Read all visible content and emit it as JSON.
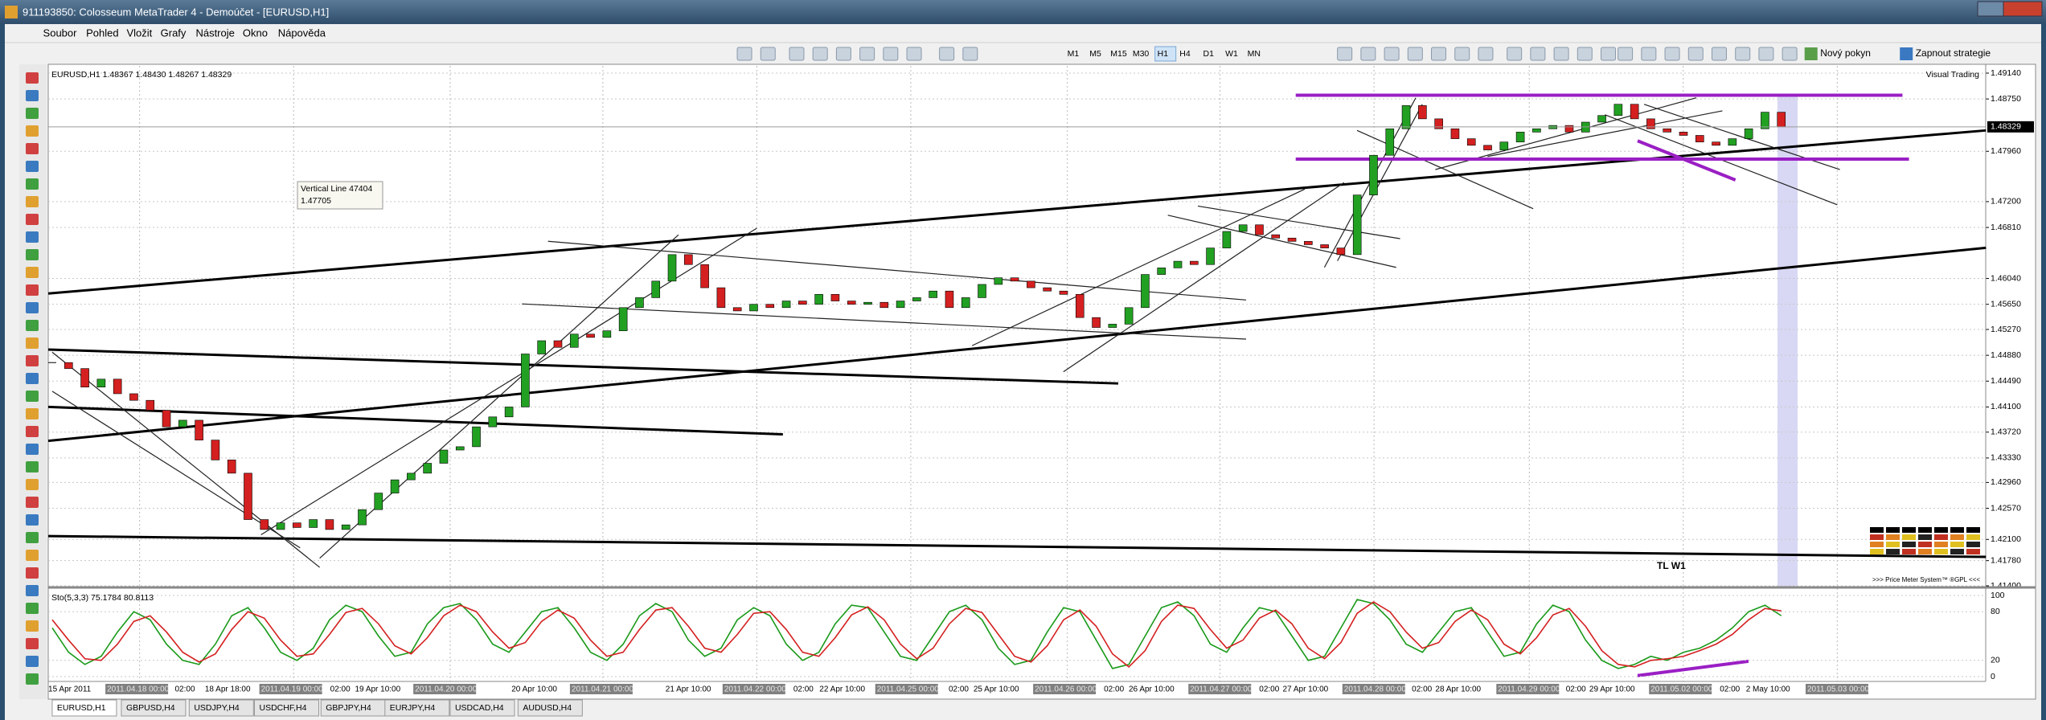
{
  "window": {
    "title": "911193850: Colosseum MetaTrader 4 - Demoúčet - [EURUSD,H1]",
    "menu": [
      "Soubor",
      "Pohled",
      "Vložit",
      "Grafy",
      "Nástroje",
      "Okno",
      "Nápověda"
    ],
    "timeframes": [
      "M1",
      "M5",
      "M15",
      "M30",
      "H1",
      "H4",
      "D1",
      "W1",
      "MN"
    ],
    "new_order": "Nový pokyn",
    "strategies": "Zapnout strategie"
  },
  "chart_data": [
    {
      "type": "candlestick",
      "title": "EURUSD,H1  1.48367 1.48430 1.48267 1.48329",
      "values": [
        1.4477,
        1.4468,
        1.444,
        1.4452,
        1.443,
        1.442,
        1.4405,
        1.438,
        1.439,
        1.436,
        1.433,
        1.431,
        1.424,
        1.4225,
        1.4235,
        1.4228,
        1.424,
        1.4225,
        1.4232,
        1.4255,
        1.428,
        1.43,
        1.431,
        1.4325,
        1.4345,
        1.435,
        1.438,
        1.4395,
        1.441,
        1.449,
        1.451,
        1.45,
        1.452,
        1.4515,
        1.4525,
        1.456,
        1.4575,
        1.46,
        1.464,
        1.4625,
        1.459,
        1.456,
        1.4555,
        1.4565,
        1.456,
        1.457,
        1.4565,
        1.458,
        1.457,
        1.4565,
        1.4568,
        1.456,
        1.457,
        1.4575,
        1.4585,
        1.456,
        1.4575,
        1.4595,
        1.4605,
        1.46,
        1.459,
        1.4585,
        1.458,
        1.4545,
        1.453,
        1.4535,
        1.456,
        1.461,
        1.462,
        1.463,
        1.4625,
        1.465,
        1.4675,
        1.4685,
        1.467,
        1.4665,
        1.466,
        1.4655,
        1.465,
        1.464,
        1.473,
        1.479,
        1.483,
        1.4865,
        1.4845,
        1.483,
        1.4815,
        1.4805,
        1.4798,
        1.481,
        1.4825,
        1.483,
        1.4835,
        1.4825,
        1.484,
        1.485,
        1.4867,
        1.4845,
        1.483,
        1.4825,
        1.482,
        1.481,
        1.4805,
        1.4815,
        1.483,
        1.4855,
        1.4833
      ],
      "up_color": "#22a022",
      "down_color": "#d42020",
      "ylim": [
        1.414,
        1.4914
      ],
      "yticks": [
        {
          "value": 1.4914,
          "label": "1.49140"
        },
        {
          "value": 1.4875,
          "label": "1.48750"
        },
        {
          "value": 1.4796,
          "label": "1.47960"
        },
        {
          "value": 1.472,
          "label": "1.47200"
        },
        {
          "value": 1.4681,
          "label": "1.46810"
        },
        {
          "value": 1.4604,
          "label": "1.46040"
        },
        {
          "value": 1.4565,
          "label": "1.45650"
        },
        {
          "value": 1.4527,
          "label": "1.45270"
        },
        {
          "value": 1.4488,
          "label": "1.44880"
        },
        {
          "value": 1.4449,
          "label": "1.44490"
        },
        {
          "value": 1.441,
          "label": "1.44100"
        },
        {
          "value": 1.4372,
          "label": "1.43720"
        },
        {
          "value": 1.4333,
          "label": "1.43330"
        },
        {
          "value": 1.4296,
          "label": "1.42960"
        },
        {
          "value": 1.4257,
          "label": "1.42570"
        },
        {
          "value": 1.421,
          "label": "1.42100"
        },
        {
          "value": 1.4178,
          "label": "1.41780"
        },
        {
          "value": 1.414,
          "label": "1.41400"
        }
      ],
      "bid": {
        "value": 1.48329,
        "label": "1.48329"
      },
      "grid": true,
      "annotations": {
        "tooltip_name": "Vertical Line 47404",
        "tooltip_value": "1.47705",
        "visual_trading": "Visual Trading",
        "trendline": "TL W1",
        "price_meter": ">>> Price Meter System™ ®GPL <<<"
      },
      "time_axis": [
        {
          "label": "15 Apr 2011",
          "highlight": false
        },
        {
          "label": "2011.04.18 00:00",
          "highlight": true
        },
        {
          "label": "02:00",
          "highlight": false
        },
        {
          "label": "18 Apr 18:00",
          "highlight": false
        },
        {
          "label": "2011.04.19 00:00",
          "highlight": true
        },
        {
          "label": "02:00",
          "highlight": false
        },
        {
          "label": "19 Apr 10:00",
          "highlight": false
        },
        {
          "label": "2011.04.20 00:00",
          "highlight": true
        },
        {
          "label": "20 Apr 10:00",
          "highlight": false
        },
        {
          "label": "2011.04.21 00:00",
          "highlight": true
        },
        {
          "label": "21 Apr 10:00",
          "highlight": false
        },
        {
          "label": "2011.04.22 00:00",
          "highlight": true
        },
        {
          "label": "02:00",
          "highlight": false
        },
        {
          "label": "22 Apr 10:00",
          "highlight": false
        },
        {
          "label": "2011.04.25 00:00",
          "highlight": true
        },
        {
          "label": "02:00",
          "highlight": false
        },
        {
          "label": "25 Apr 10:00",
          "highlight": false
        },
        {
          "label": "2011.04.26 00:00",
          "highlight": true
        },
        {
          "label": "02:00",
          "highlight": false
        },
        {
          "label": "26 Apr 10:00",
          "highlight": false
        },
        {
          "label": "2011.04.27 00:00",
          "highlight": true
        },
        {
          "label": "02:00",
          "highlight": false
        },
        {
          "label": "27 Apr 10:00",
          "highlight": false
        },
        {
          "label": "2011.04.28 00:00",
          "highlight": true
        },
        {
          "label": "02:00",
          "highlight": false
        },
        {
          "label": "28 Apr 10:00",
          "highlight": false
        },
        {
          "label": "2011.04.29 00:00",
          "highlight": true
        },
        {
          "label": "02:00",
          "highlight": false
        },
        {
          "label": "29 Apr 10:00",
          "highlight": false
        },
        {
          "label": "2011.05.02 00:00",
          "highlight": true
        },
        {
          "label": "02:00",
          "highlight": false
        },
        {
          "label": "2 May 10:00",
          "highlight": false
        },
        {
          "label": "2011.05.03 00:00",
          "highlight": true
        }
      ]
    },
    {
      "type": "line",
      "title": "Sto(5,3,3) 75.1784 80.8113",
      "series": [
        {
          "color": "#1a9a1a",
          "values": [
            60,
            30,
            15,
            25,
            55,
            80,
            70,
            40,
            20,
            15,
            40,
            75,
            85,
            60,
            30,
            20,
            35,
            70,
            88,
            80,
            50,
            25,
            30,
            65,
            85,
            90,
            70,
            40,
            30,
            55,
            80,
            85,
            60,
            30,
            20,
            40,
            75,
            90,
            80,
            45,
            25,
            35,
            70,
            85,
            75,
            40,
            20,
            30,
            65,
            88,
            85,
            55,
            25,
            20,
            50,
            80,
            88,
            70,
            35,
            15,
            20,
            55,
            85,
            80,
            45,
            10,
            15,
            50,
            85,
            92,
            75,
            40,
            30,
            60,
            85,
            80,
            50,
            20,
            25,
            60,
            95,
            90,
            70,
            40,
            30,
            55,
            80,
            85,
            55,
            25,
            30,
            65,
            88,
            80,
            45,
            20,
            10,
            15,
            25,
            20,
            30,
            35,
            45,
            60,
            80,
            88,
            75
          ]
        },
        {
          "color": "#d42020",
          "values": [
            70,
            45,
            22,
            20,
            40,
            68,
            75,
            55,
            30,
            18,
            28,
            58,
            80,
            72,
            45,
            25,
            28,
            52,
            79,
            84,
            65,
            38,
            28,
            48,
            75,
            88,
            80,
            55,
            35,
            42,
            68,
            82,
            72,
            45,
            25,
            30,
            58,
            82,
            85,
            62,
            35,
            30,
            52,
            78,
            80,
            58,
            30,
            25,
            48,
            76,
            86,
            70,
            40,
            22,
            35,
            65,
            84,
            79,
            52,
            25,
            18,
            38,
            70,
            82,
            62,
            28,
            12,
            32,
            68,
            88,
            84,
            58,
            35,
            45,
            72,
            82,
            65,
            35,
            22,
            42,
            78,
            92,
            80,
            55,
            35,
            42,
            68,
            82,
            70,
            40,
            28,
            48,
            76,
            84,
            62,
            32,
            15,
            12,
            20,
            22,
            25,
            32,
            40,
            52,
            70,
            84,
            81
          ]
        }
      ],
      "ylim": [
        0,
        100
      ],
      "yticks": [
        100,
        80,
        20,
        0
      ]
    }
  ],
  "tabs": [
    "EURUSD,H1",
    "GBPUSD,H4",
    "USDJPY,H4",
    "USDCHF,H4",
    "GBPJPY,H4",
    "EURJPY,H4",
    "USDCAD,H4",
    "AUDUSD,H4"
  ]
}
